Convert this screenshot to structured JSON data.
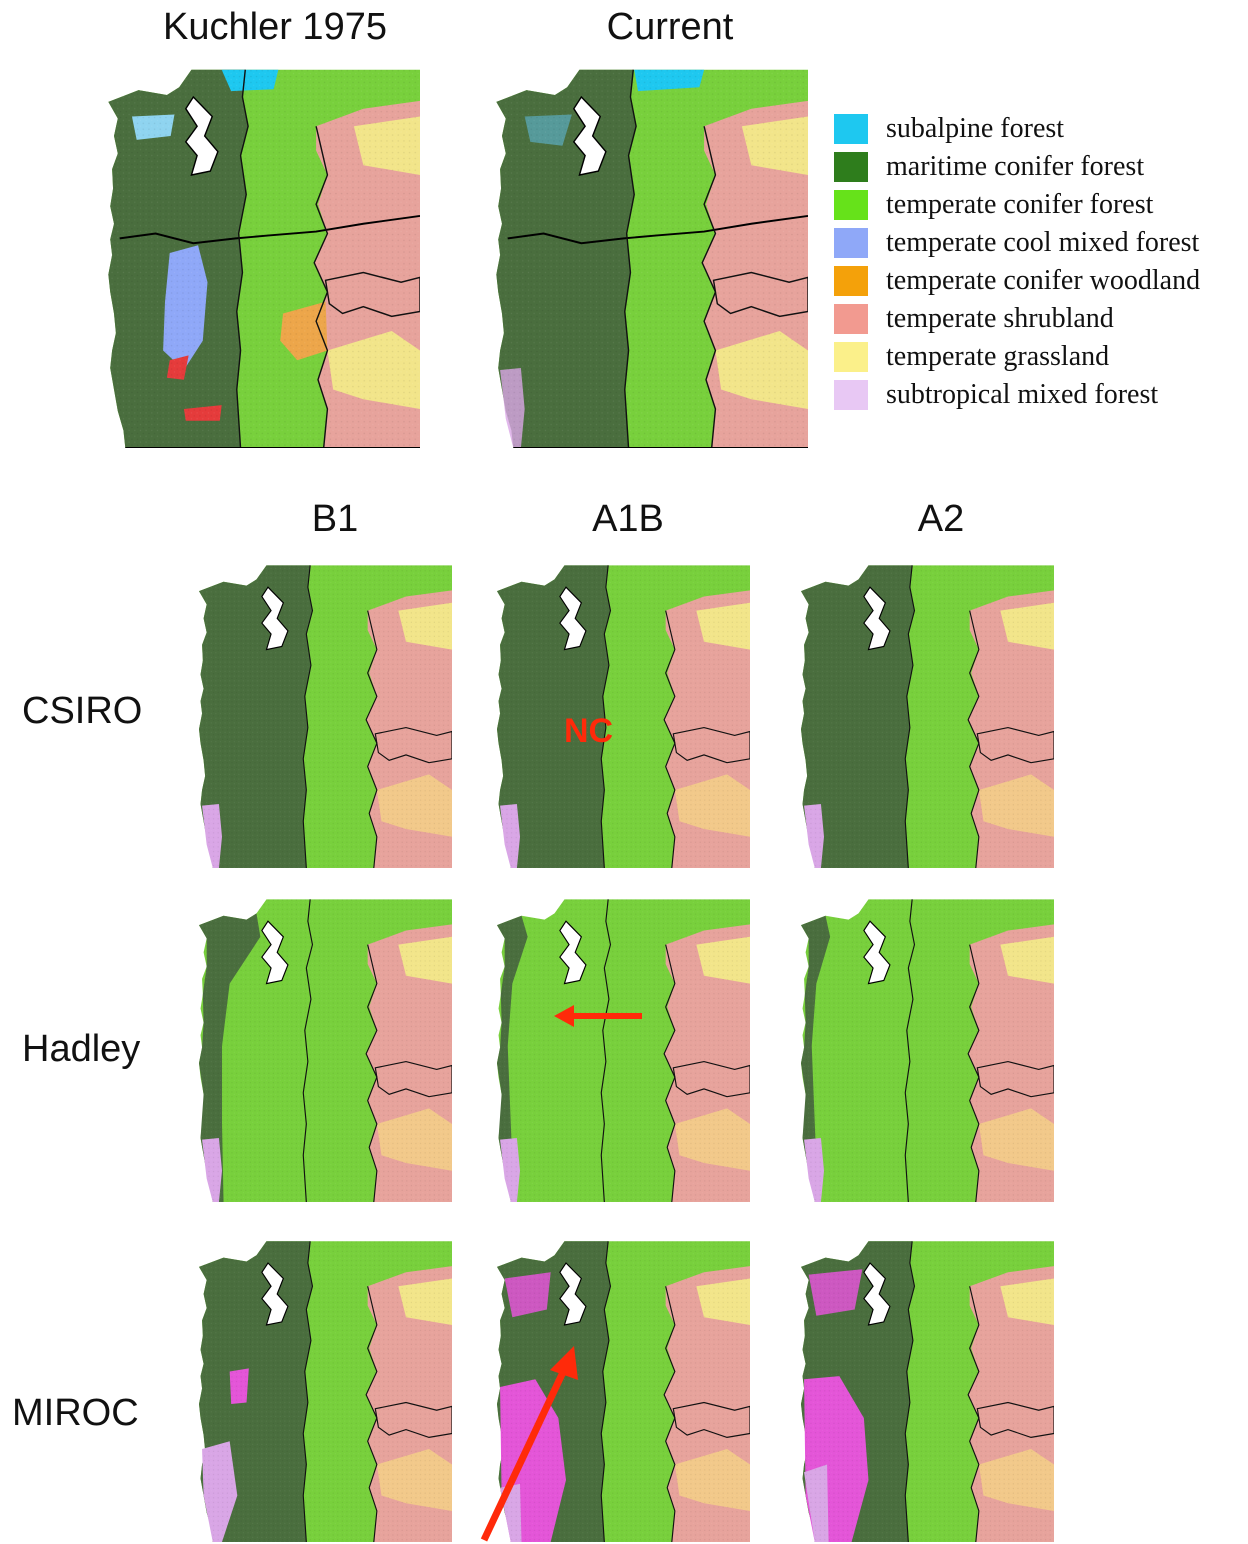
{
  "titles": {
    "kuchler": "Kuchler 1975",
    "current": "Current",
    "b1": "B1",
    "a1b": "A1B",
    "a2": "A2"
  },
  "rows": {
    "csiro": "CSIRO",
    "hadley": "Hadley",
    "miroc": "MIROC"
  },
  "annotation": {
    "nc": "NC"
  },
  "legend": [
    {
      "label": "subalpine forest",
      "color": "#1ec8f0"
    },
    {
      "label": "maritime conifer forest",
      "color": "#2e7d1c"
    },
    {
      "label": "temperate conifer forest",
      "color": "#66e21a"
    },
    {
      "label": "temperate cool mixed forest",
      "color": "#8fa8f8"
    },
    {
      "label": "temperate conifer woodland",
      "color": "#f4a10a"
    },
    {
      "label": "temperate shrubland",
      "color": "#f29a90"
    },
    {
      "label": "temperate grassland",
      "color": "#fbf08a"
    },
    {
      "label": "subtropical mixed forest",
      "color": "#e8c8f4"
    }
  ],
  "colors": {
    "maritime_map": "#4a6e3e",
    "conifer_map": "#78d03c",
    "shrub_map": "#e7a39c",
    "grass_map": "#f2e58a",
    "subtropical_map": "#d9a6e6",
    "magenta_map": "#e455d8",
    "woodland_map": "#eda64a",
    "arrow": "#ff2a0a"
  },
  "icons": [
    "arrow-left-icon",
    "arrow-up-right-icon"
  ]
}
